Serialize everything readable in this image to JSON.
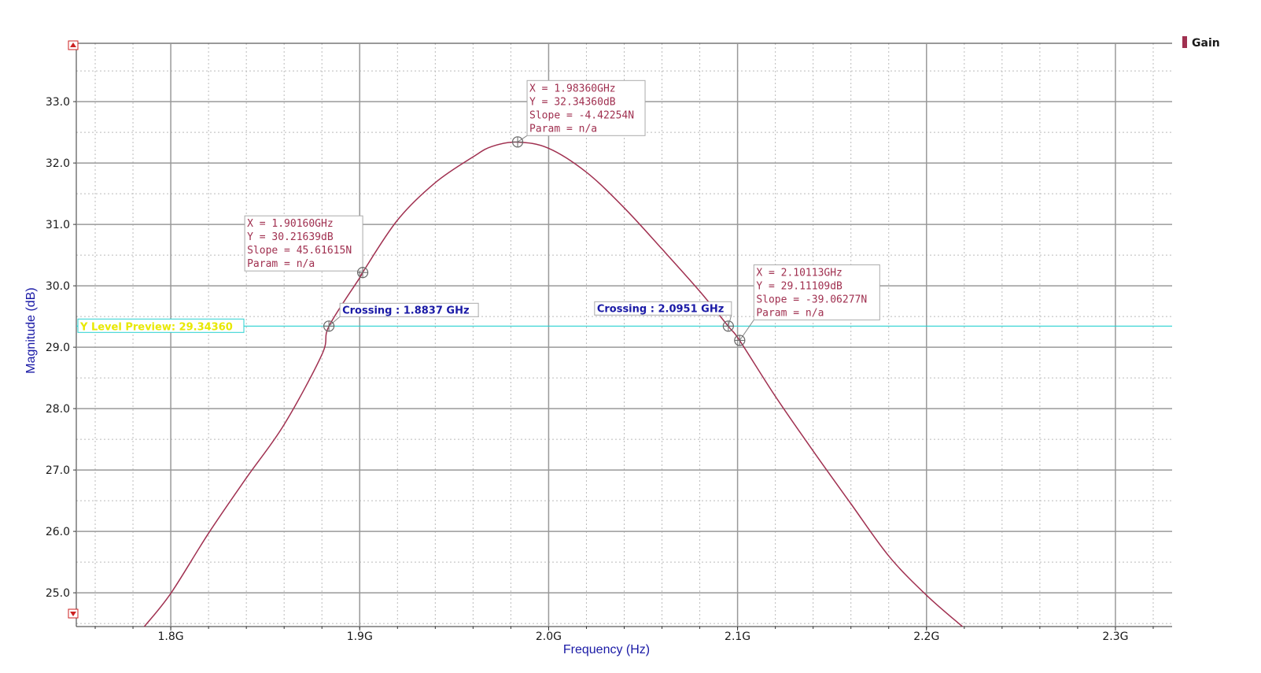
{
  "chart_data": {
    "type": "line",
    "title": "",
    "xlabel": "Frequency (Hz)",
    "ylabel": "Magnitude (dB)",
    "xlim": [
      1.75,
      2.33
    ],
    "ylim": [
      24.45,
      33.95
    ],
    "x_ticks": [
      {
        "value": 1.8,
        "label": "1.8G"
      },
      {
        "value": 1.9,
        "label": "1.9G"
      },
      {
        "value": 2.0,
        "label": "2.0G"
      },
      {
        "value": 2.1,
        "label": "2.1G"
      },
      {
        "value": 2.2,
        "label": "2.2G"
      },
      {
        "value": 2.3,
        "label": "2.3G"
      }
    ],
    "y_ticks": [
      {
        "value": 25,
        "label": "25.0"
      },
      {
        "value": 26,
        "label": "26.0"
      },
      {
        "value": 27,
        "label": "27.0"
      },
      {
        "value": 28,
        "label": "28.0"
      },
      {
        "value": 29,
        "label": "29.0"
      },
      {
        "value": 30,
        "label": "30.0"
      },
      {
        "value": 31,
        "label": "31.0"
      },
      {
        "value": 32,
        "label": "32.0"
      },
      {
        "value": 33,
        "label": "33.0"
      }
    ],
    "grid": true,
    "legend": {
      "position": "top-right",
      "entries": [
        {
          "name": "Gain",
          "color": "#a03050"
        }
      ]
    },
    "series": [
      {
        "name": "Gain",
        "color": "#a03050",
        "x": [
          1.786,
          1.8,
          1.82,
          1.84,
          1.86,
          1.88,
          1.8837,
          1.9,
          1.9016,
          1.92,
          1.94,
          1.96,
          1.97,
          1.9836,
          2.0,
          2.02,
          2.04,
          2.06,
          2.08,
          2.0951,
          2.1011,
          2.12,
          2.14,
          2.16,
          2.18,
          2.2,
          2.219
        ],
        "y": [
          24.45,
          24.99,
          25.97,
          26.87,
          27.74,
          28.88,
          29.34,
          30.13,
          30.22,
          31.07,
          31.68,
          32.1,
          32.27,
          32.34,
          32.24,
          31.85,
          31.27,
          30.6,
          29.91,
          29.34,
          29.11,
          28.2,
          27.31,
          26.45,
          25.6,
          24.96,
          24.45
        ]
      }
    ],
    "y_level": {
      "value": 29.3436,
      "label": "Y Level Preview: 29.34360",
      "color": "#28d0d0"
    },
    "markers": [
      {
        "x": 1.9016,
        "y": 30.21639,
        "lines": [
          "X = 1.90160GHz",
          "Y = 30.21639dB",
          "Slope = 45.61615N",
          "Param = n/a"
        ]
      },
      {
        "x": 1.9836,
        "y": 32.3436,
        "lines": [
          "X = 1.98360GHz",
          "Y = 32.34360dB",
          "Slope = -4.42254N",
          "Param = n/a"
        ]
      },
      {
        "x": 2.10113,
        "y": 29.11109,
        "lines": [
          "X = 2.10113GHz",
          "Y = 29.11109dB",
          "Slope = -39.06277N",
          "Param = n/a"
        ]
      }
    ],
    "crossings": [
      {
        "x": 1.8837,
        "y": 29.3436,
        "label": "Crossing : 1.8837 GHz"
      },
      {
        "x": 2.0951,
        "y": 29.3436,
        "label": "Crossing : 2.0951 GHz"
      }
    ]
  }
}
